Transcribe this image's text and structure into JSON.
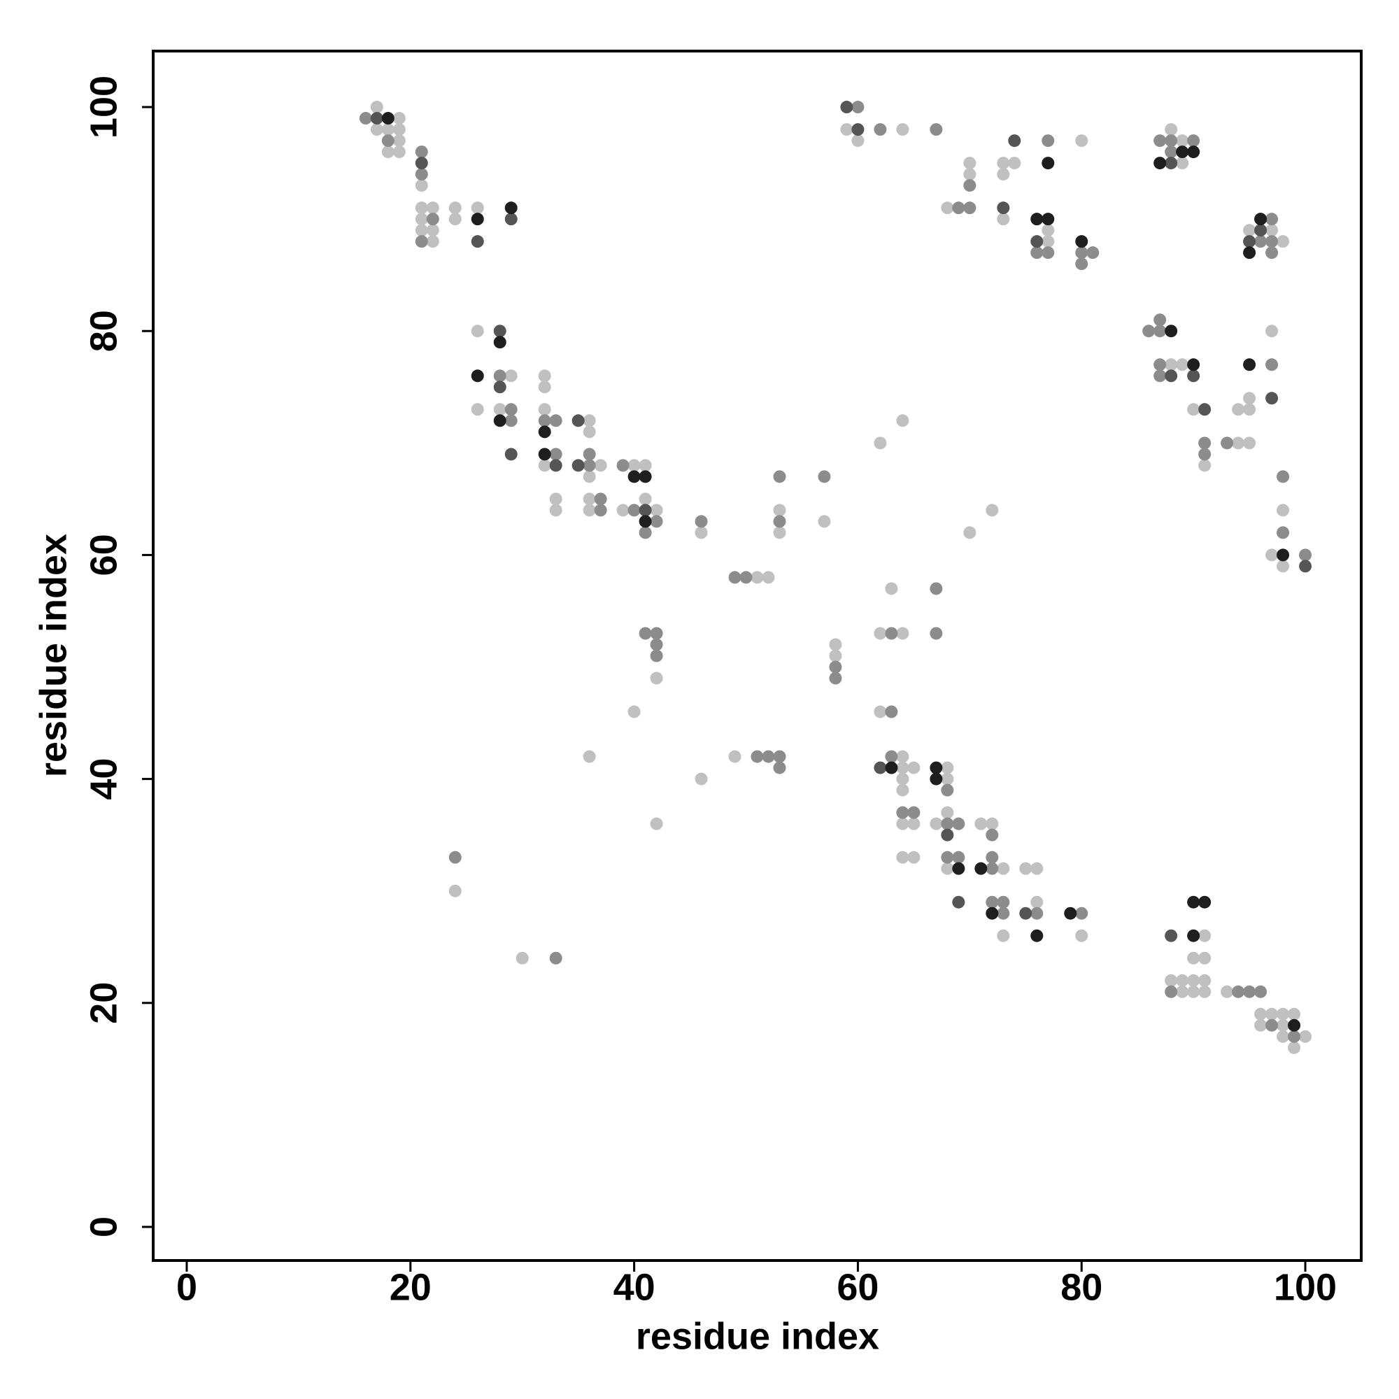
{
  "chart_data": {
    "type": "scatter",
    "xlabel": "residue index",
    "ylabel": "residue index",
    "xlim": [
      -3,
      105
    ],
    "ylim": [
      -3,
      105
    ],
    "xticks": [
      0,
      20,
      40,
      60,
      80,
      100
    ],
    "yticks": [
      0,
      20,
      40,
      60,
      80,
      100
    ],
    "grid": false,
    "series": [
      {
        "color": "#c0c0c0",
        "x": [
          17,
          17,
          18,
          19,
          19,
          19,
          18,
          19,
          21,
          21,
          22,
          21,
          21,
          22,
          22,
          24,
          24,
          26,
          26,
          29,
          26,
          28,
          32,
          32,
          32,
          32,
          36,
          36,
          37,
          36,
          33,
          33,
          36,
          36,
          40,
          41,
          39,
          42,
          41,
          46,
          51,
          52,
          53,
          53,
          57,
          42,
          40,
          36,
          49,
          46,
          42,
          24,
          30,
          58,
          58,
          62,
          64,
          62,
          64,
          63,
          62,
          64,
          64,
          64,
          65,
          64,
          64,
          65,
          64,
          65,
          68,
          68,
          67,
          68,
          68,
          71,
          72,
          73,
          73,
          75,
          76,
          76,
          80,
          91,
          90,
          91,
          88,
          89,
          90,
          91,
          89,
          90,
          91,
          93,
          96,
          97,
          98,
          99,
          96,
          98,
          98,
          100,
          99,
          59,
          60,
          64,
          68,
          70,
          70,
          73,
          73,
          74,
          73,
          77,
          77,
          80,
          89,
          88,
          89,
          95,
          97,
          98,
          88,
          89,
          90,
          91,
          94,
          95,
          94,
          95,
          95,
          97,
          98,
          97,
          98,
          70,
          72
        ],
        "y": [
          100,
          98,
          98,
          99,
          98,
          97,
          96,
          96,
          93,
          91,
          91,
          90,
          89,
          89,
          88,
          91,
          90,
          91,
          80,
          76,
          73,
          73,
          76,
          75,
          73,
          68,
          72,
          71,
          68,
          67,
          65,
          64,
          65,
          64,
          68,
          68,
          64,
          64,
          65,
          62,
          58,
          58,
          64,
          62,
          63,
          49,
          46,
          42,
          42,
          40,
          36,
          30,
          24,
          52,
          51,
          70,
          72,
          53,
          53,
          57,
          46,
          42,
          41,
          40,
          41,
          39,
          36,
          36,
          33,
          33,
          41,
          40,
          36,
          37,
          32,
          36,
          36,
          32,
          26,
          32,
          32,
          29,
          26,
          26,
          24,
          24,
          22,
          22,
          22,
          22,
          21,
          21,
          21,
          21,
          19,
          19,
          19,
          19,
          18,
          18,
          17,
          17,
          16,
          98,
          97,
          98,
          91,
          94,
          95,
          95,
          94,
          95,
          90,
          89,
          88,
          97,
          97,
          98,
          95,
          89,
          89,
          88,
          77,
          77,
          73,
          68,
          70,
          70,
          73,
          73,
          74,
          80,
          64,
          60,
          59,
          62,
          64
        ]
      },
      {
        "color": "#8c8c8c",
        "x": [
          16,
          18,
          21,
          21,
          21,
          22,
          28,
          29,
          29,
          32,
          33,
          33,
          36,
          36,
          37,
          37,
          39,
          40,
          42,
          41,
          46,
          49,
          50,
          53,
          53,
          57,
          41,
          42,
          42,
          42,
          51,
          52,
          53,
          53,
          24,
          33,
          58,
          58,
          63,
          67,
          67,
          63,
          63,
          64,
          65,
          68,
          68,
          69,
          68,
          69,
          72,
          72,
          72,
          72,
          73,
          73,
          76,
          80,
          88,
          94,
          95,
          96,
          97,
          99,
          60,
          62,
          67,
          69,
          70,
          70,
          76,
          77,
          77,
          80,
          81,
          80,
          87,
          88,
          90,
          88,
          97,
          96,
          97,
          97,
          86,
          87,
          87,
          87,
          87,
          91,
          91,
          93,
          97,
          98,
          98,
          100
        ],
        "y": [
          99,
          97,
          96,
          94,
          88,
          90,
          76,
          73,
          72,
          72,
          72,
          69,
          68,
          69,
          65,
          64,
          68,
          64,
          63,
          62,
          63,
          58,
          58,
          67,
          63,
          67,
          53,
          53,
          52,
          51,
          42,
          42,
          42,
          41,
          33,
          24,
          50,
          49,
          53,
          57,
          53,
          46,
          42,
          37,
          37,
          39,
          36,
          36,
          33,
          33,
          32,
          35,
          33,
          29,
          29,
          28,
          28,
          28,
          21,
          21,
          21,
          21,
          18,
          17,
          100,
          98,
          98,
          91,
          91,
          93,
          87,
          87,
          97,
          87,
          87,
          86,
          97,
          97,
          97,
          96,
          90,
          88,
          88,
          87,
          80,
          80,
          81,
          77,
          76,
          70,
          69,
          70,
          77,
          67,
          62,
          60
        ]
      },
      {
        "color": "#555555",
        "x": [
          17,
          21,
          26,
          29,
          28,
          28,
          29,
          33,
          35,
          35,
          41,
          62,
          68,
          69,
          75,
          88,
          59,
          60,
          74,
          73,
          76,
          88,
          96,
          95,
          88,
          90,
          91,
          97,
          100
        ],
        "y": [
          99,
          95,
          88,
          90,
          80,
          75,
          69,
          68,
          72,
          68,
          64,
          41,
          35,
          29,
          28,
          26,
          100,
          98,
          97,
          91,
          88,
          95,
          89,
          88,
          76,
          76,
          73,
          74,
          59
        ]
      },
      {
        "color": "#1e1e1e",
        "x": [
          18,
          26,
          29,
          28,
          26,
          28,
          32,
          32,
          40,
          41,
          41,
          63,
          67,
          67,
          69,
          71,
          72,
          76,
          79,
          90,
          90,
          91,
          99,
          77,
          76,
          77,
          80,
          89,
          90,
          87,
          96,
          95,
          88,
          90,
          95,
          98
        ],
        "y": [
          99,
          90,
          91,
          79,
          76,
          72,
          71,
          69,
          67,
          67,
          63,
          41,
          41,
          40,
          32,
          32,
          28,
          26,
          28,
          26,
          29,
          29,
          18,
          90,
          90,
          95,
          88,
          96,
          96,
          95,
          90,
          87,
          80,
          77,
          77,
          60
        ]
      }
    ]
  }
}
